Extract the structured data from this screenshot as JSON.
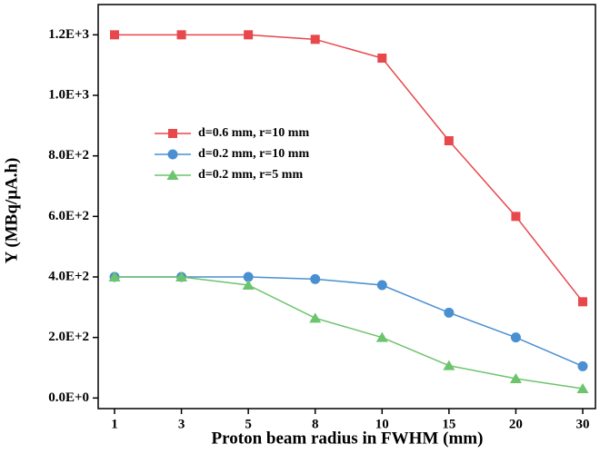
{
  "chart_data": {
    "type": "line",
    "x_label": "Proton beam radius in FWHM (mm)",
    "y_label": "Y (MBq/μA.h)",
    "categories": [
      "1",
      "3",
      "5",
      "8",
      "10",
      "15",
      "20",
      "30"
    ],
    "series": [
      {
        "name": "d=0.6 mm, r=10 mm",
        "color": "#e8474c",
        "marker": "square",
        "values": [
          1200,
          1200,
          1200,
          1185,
          1123,
          850,
          600,
          318
        ]
      },
      {
        "name": "d=0.2 mm, r=10 mm",
        "color": "#4a8fd1",
        "marker": "circle",
        "values": [
          400,
          400,
          400,
          393,
          373,
          282,
          200,
          105
        ]
      },
      {
        "name": "d=0.2 mm, r=5 mm",
        "color": "#6cc46c",
        "marker": "triangle",
        "values": [
          400,
          400,
          373,
          264,
          200,
          107,
          64,
          31
        ]
      }
    ],
    "ylim": [
      -35,
      1300
    ],
    "yticks": [
      {
        "value": 0,
        "label": "0.0E+0"
      },
      {
        "value": 200,
        "label": "2.0E+2"
      },
      {
        "value": 400,
        "label": "4.0E+2"
      },
      {
        "value": 600,
        "label": "6.0E+2"
      },
      {
        "value": 800,
        "label": "8.0E+2"
      },
      {
        "value": 1000,
        "label": "1.0E+3"
      },
      {
        "value": 1200,
        "label": "1.2E+3"
      }
    ],
    "legend": "upper left"
  }
}
